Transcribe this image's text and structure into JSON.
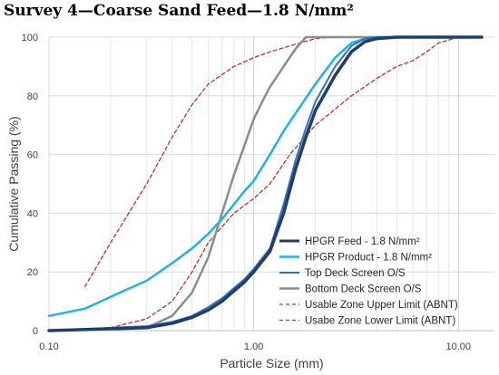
{
  "chart_data": {
    "type": "line",
    "title": "Survey 4—Coarse Sand Feed—1.8 N/mm²",
    "xlabel": "Particle Size (mm)",
    "ylabel": "Cumulative Passing (%)",
    "x_scale": "log",
    "xlim": [
      0.1,
      15
    ],
    "ylim": [
      0,
      100
    ],
    "x_ticks": [
      0.1,
      1,
      10
    ],
    "x_tick_labels": [
      "0.10",
      "1.00",
      "10.00"
    ],
    "y_ticks": [
      0,
      20,
      40,
      60,
      80,
      100
    ],
    "y_tick_labels": [
      "0",
      "20",
      "40",
      "60",
      "80",
      "100"
    ],
    "grid": true,
    "legend_position": "bottom-right",
    "series": [
      {
        "name": "HPGR Feed - 1.8 N/mm²",
        "color": "#1f3e6e",
        "dash": "solid",
        "width": 3.5,
        "x": [
          0.1,
          0.3,
          0.4,
          0.5,
          0.6,
          0.7,
          0.8,
          0.9,
          1.0,
          1.2,
          1.4,
          1.6,
          1.8,
          2.0,
          2.5,
          3.0,
          3.5,
          4.0,
          5.0,
          7.0,
          10.0,
          13.0
        ],
        "y": [
          0,
          1,
          2.5,
          4.5,
          7,
          10,
          13.5,
          16.5,
          20,
          27,
          40,
          55,
          66,
          75,
          87,
          95,
          98.5,
          99.5,
          100,
          100,
          100,
          100
        ]
      },
      {
        "name": "HPGR Product - 1.8 N/mm²",
        "color": "#1fb4e0",
        "dash": "solid",
        "width": 2.5,
        "x": [
          0.1,
          0.15,
          0.2,
          0.3,
          0.4,
          0.5,
          0.6,
          0.7,
          0.8,
          0.9,
          1.0,
          1.2,
          1.4,
          1.6,
          2.0,
          2.5,
          3.0,
          3.5,
          4.0,
          5.0,
          7.0,
          10.0,
          13.0
        ],
        "y": [
          5,
          7.5,
          11.5,
          17,
          23,
          28,
          33,
          38,
          43,
          47.5,
          51,
          60,
          68,
          74,
          84,
          93,
          98,
          99.5,
          100,
          100,
          100,
          100,
          100
        ]
      },
      {
        "name": "Top Deck Screen O/S",
        "color": "#3a70b0",
        "dash": "solid",
        "width": 2,
        "x": [
          0.1,
          0.3,
          0.4,
          0.5,
          0.6,
          0.7,
          0.8,
          0.9,
          1.0,
          1.2,
          1.4,
          1.6,
          1.8,
          2.0,
          2.5,
          3.0,
          3.5,
          4.0,
          5.0,
          7.0,
          10.0,
          13.0
        ],
        "y": [
          0,
          1.5,
          3,
          5,
          8,
          11,
          14.5,
          17.5,
          21,
          28,
          43,
          58,
          69,
          78,
          90,
          97,
          99.5,
          100,
          100,
          100,
          100,
          100
        ]
      },
      {
        "name": "Bottom Deck Screen O/S",
        "color": "#8c8c8c",
        "dash": "solid",
        "width": 2.5,
        "x": [
          0.1,
          0.3,
          0.4,
          0.5,
          0.6,
          0.7,
          0.8,
          0.9,
          1.0,
          1.1,
          1.2,
          1.4,
          1.6,
          1.8,
          2.0,
          3.0,
          5.0,
          10.0,
          13.0
        ],
        "y": [
          0,
          1,
          5,
          13,
          25,
          40,
          53,
          63,
          72,
          78,
          83,
          90,
          96,
          100,
          100,
          100,
          100,
          100,
          100
        ]
      },
      {
        "name": "Usable Zone Upper Limit (ABNT)",
        "color": "#c0302c",
        "dash": "dashed",
        "width": 1.3,
        "x": [
          0.15,
          0.2,
          0.3,
          0.4,
          0.5,
          0.6,
          0.8,
          1.0,
          1.2,
          1.5,
          2.0,
          2.4,
          3.0,
          4.0,
          6.0,
          10.0
        ],
        "y": [
          15,
          30,
          50,
          66,
          77,
          84,
          90,
          93,
          95,
          97,
          99.5,
          100,
          100,
          100,
          100,
          100
        ]
      },
      {
        "name": "Usabe Zone Lower Limit (ABNT)",
        "color": "#c0302c",
        "dash": "dashed",
        "width": 1.3,
        "x": [
          0.15,
          0.2,
          0.3,
          0.4,
          0.5,
          0.6,
          0.8,
          1.0,
          1.2,
          1.5,
          2.0,
          3.0,
          4.0,
          5.0,
          6.0,
          7.0,
          8.0,
          10.0
        ],
        "y": [
          0,
          1,
          4,
          10,
          20,
          30,
          40,
          45,
          50,
          60,
          70,
          80,
          86,
          90,
          92,
          95,
          98,
          100
        ]
      }
    ]
  }
}
